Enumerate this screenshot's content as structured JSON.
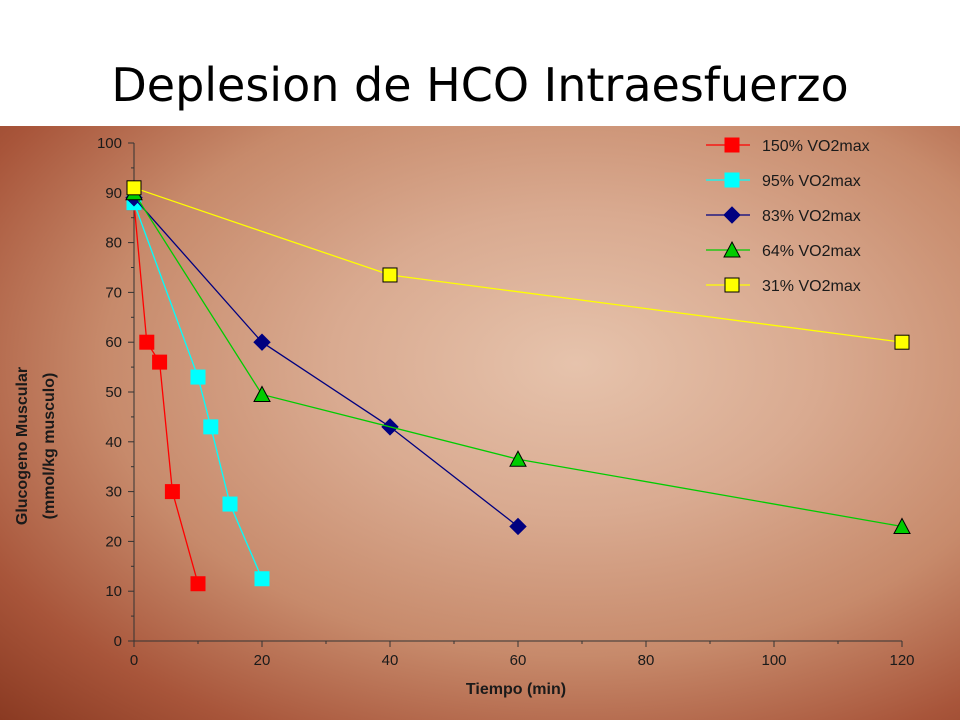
{
  "title": "Deplesion de HCO Intraesfuerzo",
  "chart_data": {
    "type": "line",
    "xlabel": "Tiempo (min)",
    "ylabel_lines": [
      "Glucogeno Muscular",
      "(mmol/kg musculo)"
    ],
    "xlim": [
      0,
      120
    ],
    "ylim": [
      0,
      100
    ],
    "x_ticks": [
      0,
      20,
      40,
      60,
      80,
      100,
      120
    ],
    "y_ticks": [
      0,
      10,
      20,
      30,
      40,
      50,
      60,
      70,
      80,
      90,
      100
    ],
    "grid": false,
    "legend_position": "top-right",
    "series": [
      {
        "name": "150% VO2max",
        "color": "#ff0000",
        "marker": "square-filled",
        "x": [
          0,
          2,
          4,
          6,
          10
        ],
        "y": [
          88,
          60,
          56,
          30,
          11.5
        ]
      },
      {
        "name": "95% VO2max",
        "color": "#00ffff",
        "marker": "square-filled",
        "x": [
          0,
          10,
          12,
          15,
          20
        ],
        "y": [
          88,
          53,
          43,
          27.5,
          12.5
        ]
      },
      {
        "name": "83% VO2max",
        "color": "#000080",
        "marker": "diamond",
        "x": [
          0,
          20,
          40,
          60
        ],
        "y": [
          89,
          60,
          43,
          23
        ]
      },
      {
        "name": "64% VO2max",
        "color": "#00cc00",
        "marker": "triangle",
        "x": [
          0,
          20,
          60,
          120
        ],
        "y": [
          90,
          49.5,
          36.5,
          23
        ]
      },
      {
        "name": "31% VO2max",
        "color": "#ffff00",
        "marker": "square-outlined",
        "x": [
          0,
          40,
          120
        ],
        "y": [
          91,
          73.5,
          60
        ]
      }
    ]
  }
}
